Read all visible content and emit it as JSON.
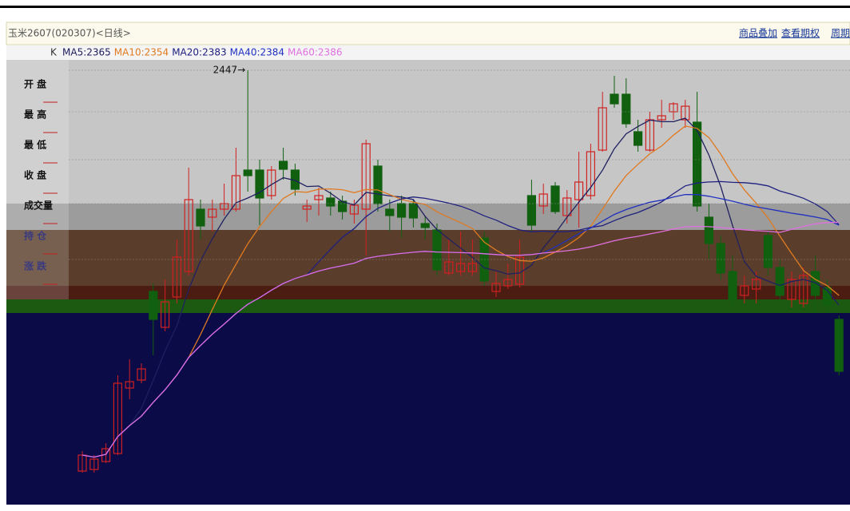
{
  "header": {
    "title": "玉米2607(020307)<日线>",
    "links": [
      "商品叠加",
      "查看期权",
      "周期"
    ]
  },
  "legend": {
    "k": "K",
    "items": [
      {
        "label": "MA5:2365",
        "color": "#202060"
      },
      {
        "label": "MA10:2354",
        "color": "#e07a20"
      },
      {
        "label": "MA20:2383",
        "color": "#202080"
      },
      {
        "label": "MA40:2384",
        "color": "#2030c0"
      },
      {
        "label": "MA60:2386",
        "color": "#e070e0"
      }
    ]
  },
  "side_labels": [
    "开 盘",
    "最 高",
    "最 低",
    "收 盘",
    "成交量",
    "持 仓",
    "涨 跌"
  ],
  "high_marker": {
    "value": 2447,
    "label": "2447→"
  },
  "chart_data": {
    "type": "candlestick",
    "ylim": [
      1903,
      2455
    ],
    "up_color": "#d02020",
    "down_color": "#106010",
    "candles": [
      {
        "o": 1945,
        "h": 1970,
        "l": 1943,
        "c": 1965
      },
      {
        "o": 1947,
        "h": 1965,
        "l": 1943,
        "c": 1960
      },
      {
        "o": 1957,
        "h": 1980,
        "l": 1955,
        "c": 1973
      },
      {
        "o": 1967,
        "h": 2065,
        "l": 1965,
        "c": 2055
      },
      {
        "o": 2049,
        "h": 2085,
        "l": 2035,
        "c": 2057
      },
      {
        "o": 2059,
        "h": 2080,
        "l": 2055,
        "c": 2073
      },
      {
        "o": 2170,
        "h": 2180,
        "l": 2090,
        "c": 2135
      },
      {
        "o": 2125,
        "h": 2185,
        "l": 2120,
        "c": 2157
      },
      {
        "o": 2163,
        "h": 2235,
        "l": 2155,
        "c": 2213
      },
      {
        "o": 2195,
        "h": 2325,
        "l": 2190,
        "c": 2285
      },
      {
        "o": 2273,
        "h": 2285,
        "l": 2235,
        "c": 2252
      },
      {
        "o": 2263,
        "h": 2285,
        "l": 2245,
        "c": 2273
      },
      {
        "o": 2273,
        "h": 2305,
        "l": 2265,
        "c": 2280
      },
      {
        "o": 2273,
        "h": 2350,
        "l": 2270,
        "c": 2315
      },
      {
        "o": 2322,
        "h": 2447,
        "l": 2295,
        "c": 2315
      },
      {
        "o": 2322,
        "h": 2335,
        "l": 2253,
        "c": 2287
      },
      {
        "o": 2290,
        "h": 2327,
        "l": 2285,
        "c": 2322
      },
      {
        "o": 2333,
        "h": 2350,
        "l": 2310,
        "c": 2323
      },
      {
        "o": 2322,
        "h": 2330,
        "l": 2290,
        "c": 2298
      },
      {
        "o": 2273,
        "h": 2285,
        "l": 2257,
        "c": 2277
      },
      {
        "o": 2285,
        "h": 2300,
        "l": 2265,
        "c": 2290
      },
      {
        "o": 2287,
        "h": 2295,
        "l": 2265,
        "c": 2277
      },
      {
        "o": 2283,
        "h": 2290,
        "l": 2260,
        "c": 2270
      },
      {
        "o": 2267,
        "h": 2285,
        "l": 2255,
        "c": 2278
      },
      {
        "o": 2273,
        "h": 2360,
        "l": 2215,
        "c": 2355
      },
      {
        "o": 2327,
        "h": 2335,
        "l": 2270,
        "c": 2280
      },
      {
        "o": 2273,
        "h": 2285,
        "l": 2245,
        "c": 2265
      },
      {
        "o": 2280,
        "h": 2290,
        "l": 2237,
        "c": 2263
      },
      {
        "o": 2280,
        "h": 2285,
        "l": 2250,
        "c": 2262
      },
      {
        "o": 2255,
        "h": 2265,
        "l": 2235,
        "c": 2250
      },
      {
        "o": 2247,
        "h": 2255,
        "l": 2190,
        "c": 2197
      },
      {
        "o": 2193,
        "h": 2235,
        "l": 2190,
        "c": 2207
      },
      {
        "o": 2195,
        "h": 2245,
        "l": 2190,
        "c": 2205
      },
      {
        "o": 2195,
        "h": 2235,
        "l": 2190,
        "c": 2205
      },
      {
        "o": 2237,
        "h": 2245,
        "l": 2177,
        "c": 2183
      },
      {
        "o": 2170,
        "h": 2195,
        "l": 2163,
        "c": 2180
      },
      {
        "o": 2177,
        "h": 2205,
        "l": 2173,
        "c": 2185
      },
      {
        "o": 2179,
        "h": 2235,
        "l": 2175,
        "c": 2213
      },
      {
        "o": 2290,
        "h": 2310,
        "l": 2245,
        "c": 2253
      },
      {
        "o": 2277,
        "h": 2305,
        "l": 2267,
        "c": 2292
      },
      {
        "o": 2302,
        "h": 2307,
        "l": 2267,
        "c": 2270
      },
      {
        "o": 2265,
        "h": 2297,
        "l": 2255,
        "c": 2287
      },
      {
        "o": 2285,
        "h": 2345,
        "l": 2250,
        "c": 2307
      },
      {
        "o": 2290,
        "h": 2355,
        "l": 2285,
        "c": 2345
      },
      {
        "o": 2347,
        "h": 2420,
        "l": 2345,
        "c": 2400
      },
      {
        "o": 2417,
        "h": 2440,
        "l": 2400,
        "c": 2405
      },
      {
        "o": 2417,
        "h": 2437,
        "l": 2375,
        "c": 2380
      },
      {
        "o": 2370,
        "h": 2385,
        "l": 2345,
        "c": 2353
      },
      {
        "o": 2347,
        "h": 2395,
        "l": 2345,
        "c": 2385
      },
      {
        "o": 2385,
        "h": 2410,
        "l": 2375,
        "c": 2390
      },
      {
        "o": 2395,
        "h": 2407,
        "l": 2385,
        "c": 2405
      },
      {
        "o": 2385,
        "h": 2410,
        "l": 2375,
        "c": 2402
      },
      {
        "o": 2382,
        "h": 2420,
        "l": 2270,
        "c": 2277
      },
      {
        "o": 2263,
        "h": 2280,
        "l": 2210,
        "c": 2230
      },
      {
        "o": 2230,
        "h": 2240,
        "l": 2185,
        "c": 2193
      },
      {
        "o": 2195,
        "h": 2215,
        "l": 2150,
        "c": 2160
      },
      {
        "o": 2165,
        "h": 2190,
        "l": 2155,
        "c": 2177
      },
      {
        "o": 2173,
        "h": 2195,
        "l": 2155,
        "c": 2185
      },
      {
        "o": 2240,
        "h": 2245,
        "l": 2190,
        "c": 2200
      },
      {
        "o": 2200,
        "h": 2210,
        "l": 2160,
        "c": 2165
      },
      {
        "o": 2160,
        "h": 2195,
        "l": 2150,
        "c": 2185
      },
      {
        "o": 2155,
        "h": 2200,
        "l": 2150,
        "c": 2190
      },
      {
        "o": 2195,
        "h": 2215,
        "l": 2145,
        "c": 2165
      },
      {
        "o": 2175,
        "h": 2185,
        "l": 2145,
        "c": 2153
      },
      {
        "o": 2135,
        "h": 2140,
        "l": 2065,
        "c": 2070
      }
    ]
  }
}
